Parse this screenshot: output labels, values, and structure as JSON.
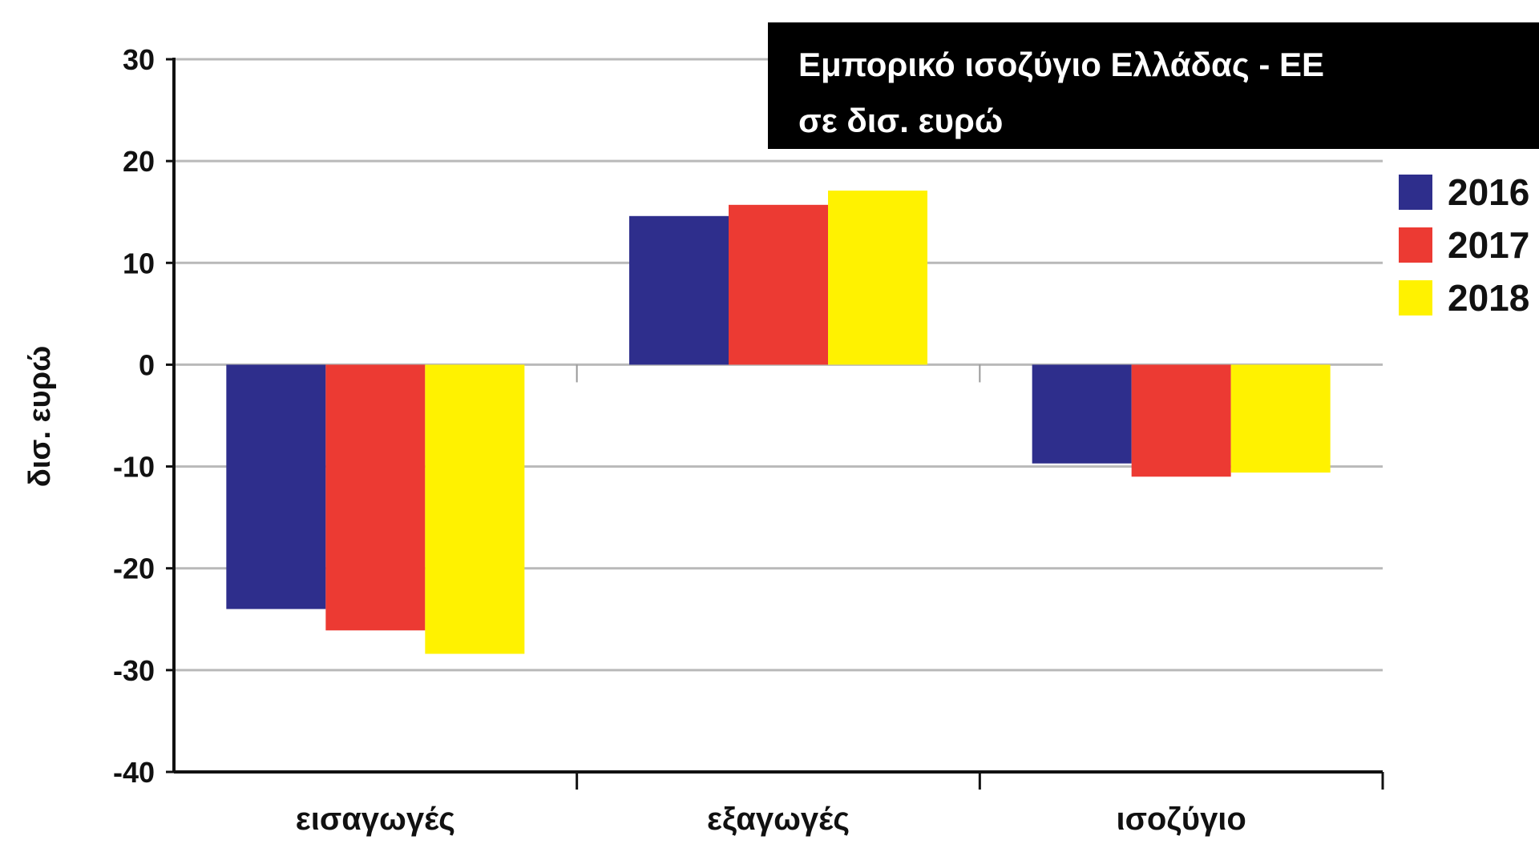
{
  "chart_data": {
    "type": "bar",
    "title": "Εμπορικό ισοζύγιο Ελλάδας - ΕΕ",
    "subtitle": "σε δισ. ευρώ",
    "xlabel": "",
    "ylabel": "δισ. ευρώ",
    "ylim": [
      -40,
      30
    ],
    "yticks": [
      30,
      20,
      10,
      0,
      -10,
      -20,
      -30,
      -40
    ],
    "grid": true,
    "legend_position": "right",
    "categories": [
      "εισαγωγές",
      "εξαγωγές",
      "ισοζύγιο"
    ],
    "series": [
      {
        "name": "2016",
        "color": "#2e2e8c",
        "values": [
          -24.0,
          14.6,
          -9.7
        ]
      },
      {
        "name": "2017",
        "color": "#ec3a33",
        "values": [
          -26.1,
          15.7,
          -11.0
        ]
      },
      {
        "name": "2018",
        "color": "#fff200",
        "values": [
          -28.4,
          17.1,
          -10.6
        ]
      }
    ]
  }
}
